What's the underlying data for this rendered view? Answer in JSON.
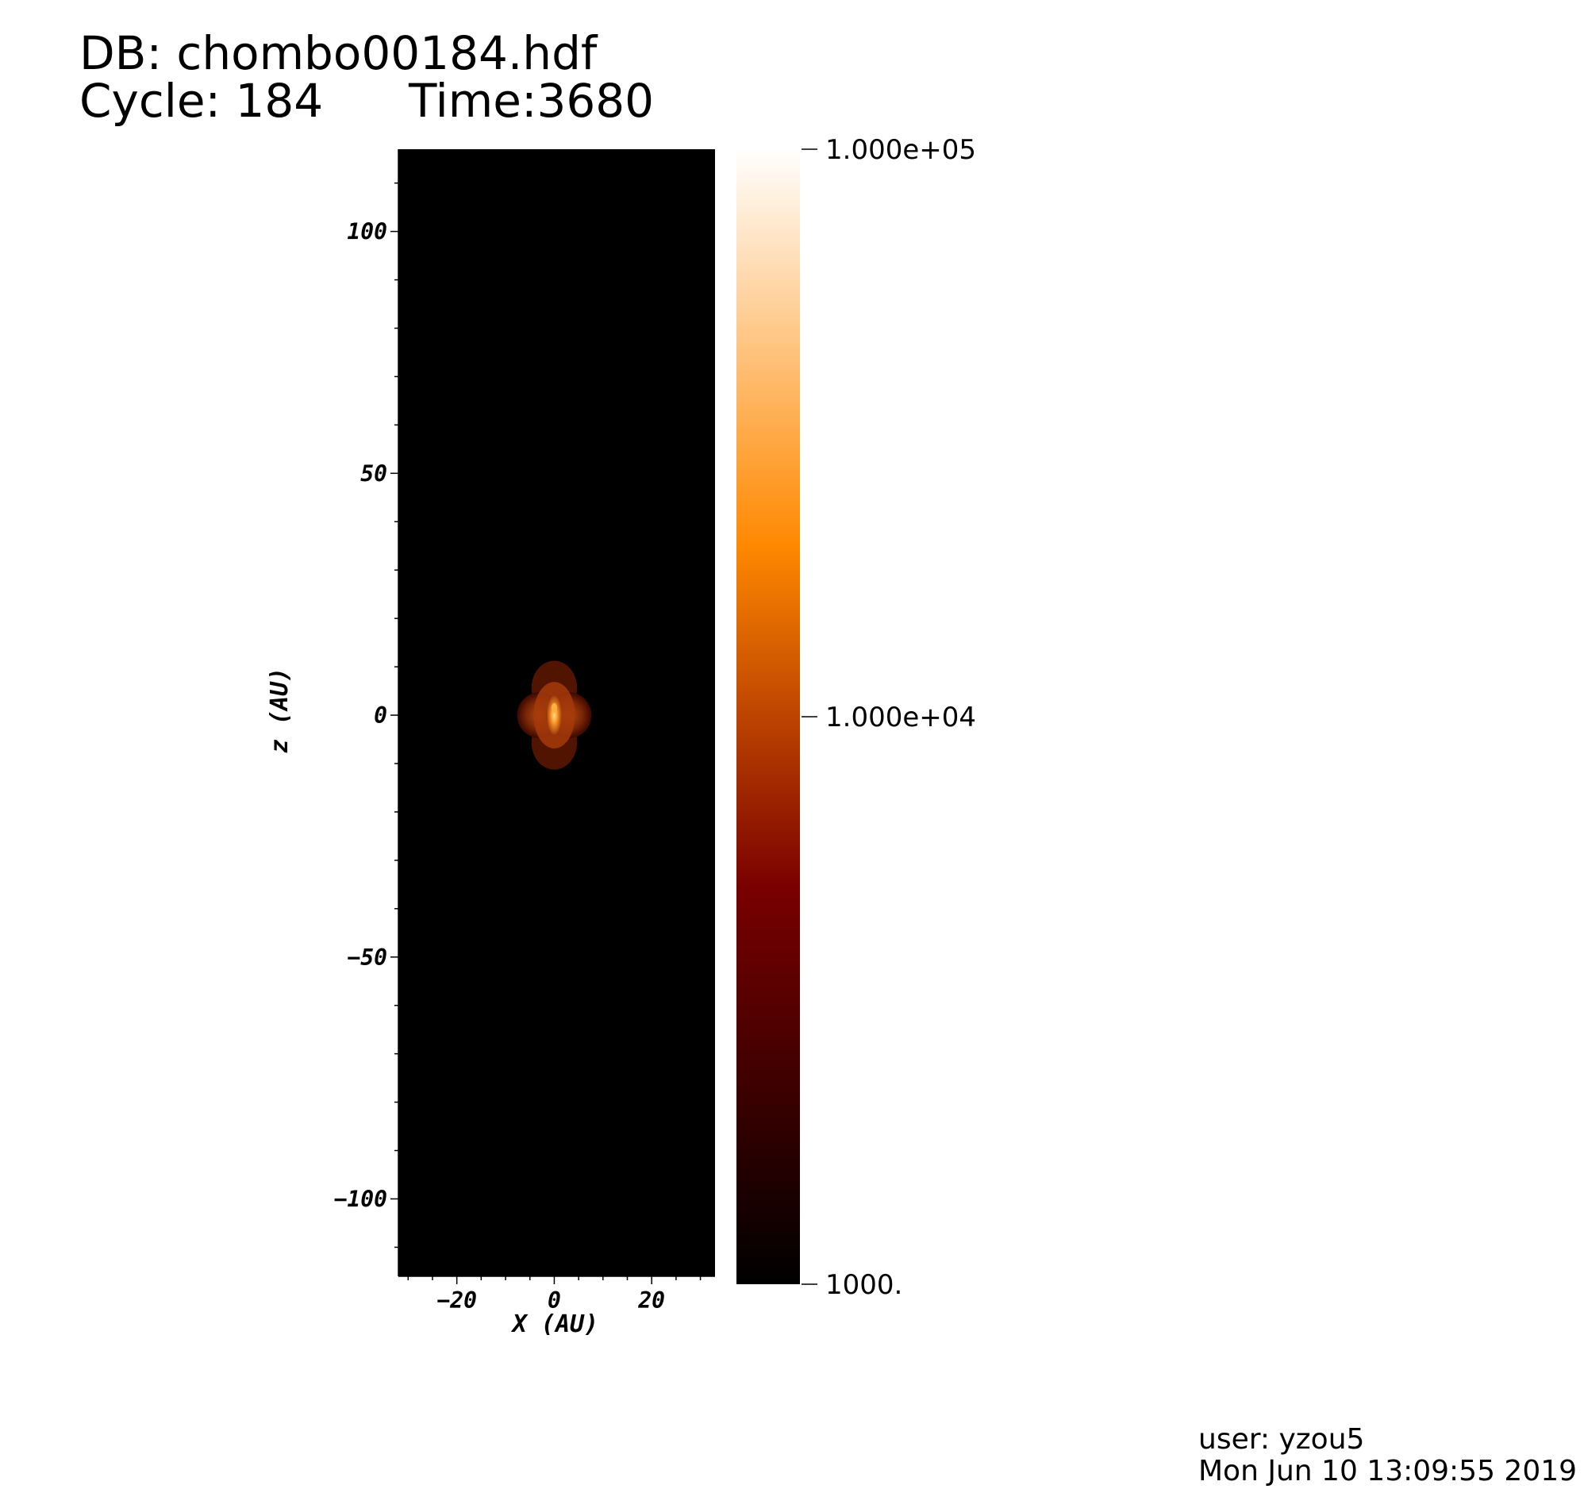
{
  "header": {
    "db_line": "DB: chombo00184.hdf",
    "cycle_line": "Cycle: 184",
    "time_line": "Time:3680"
  },
  "footer": {
    "user_line": "user: yzou5",
    "date_line": "Mon Jun 10 13:09:55 2019"
  },
  "chart_data": {
    "type": "heatmap",
    "title": "",
    "xlabel": "X (AU)",
    "ylabel": "z (AU)",
    "xlim": [
      -32,
      33
    ],
    "ylim": [
      -116,
      117
    ],
    "x_ticks": [
      {
        "value": -20,
        "label": "−20"
      },
      {
        "value": 0,
        "label": "0"
      },
      {
        "value": 20,
        "label": "20"
      }
    ],
    "y_ticks": [
      {
        "value": 100,
        "label": "100"
      },
      {
        "value": 50,
        "label": "50"
      },
      {
        "value": 0,
        "label": "0"
      },
      {
        "value": -50,
        "label": "−50"
      },
      {
        "value": -100,
        "label": "−100"
      }
    ],
    "background_color": "#000000",
    "colorbar": {
      "scale": "log",
      "min": 1000,
      "max": 100000,
      "tick_labels": [
        {
          "value": 100000,
          "label": "1.000e+05"
        },
        {
          "value": 10000,
          "label": "1.000e+04"
        },
        {
          "value": 1000,
          "label": "1000."
        }
      ],
      "colormap": [
        "#000000",
        "#7a0000",
        "#ff8800",
        "#ffffff"
      ]
    },
    "feature": {
      "description_free": true,
      "center": [
        0,
        0
      ],
      "extent_x": [
        -8,
        9
      ],
      "extent_z": [
        -12,
        13
      ],
      "colors": [
        "#5a1600",
        "#a63a0a",
        "#d46a1a",
        "#ffb040"
      ]
    }
  }
}
